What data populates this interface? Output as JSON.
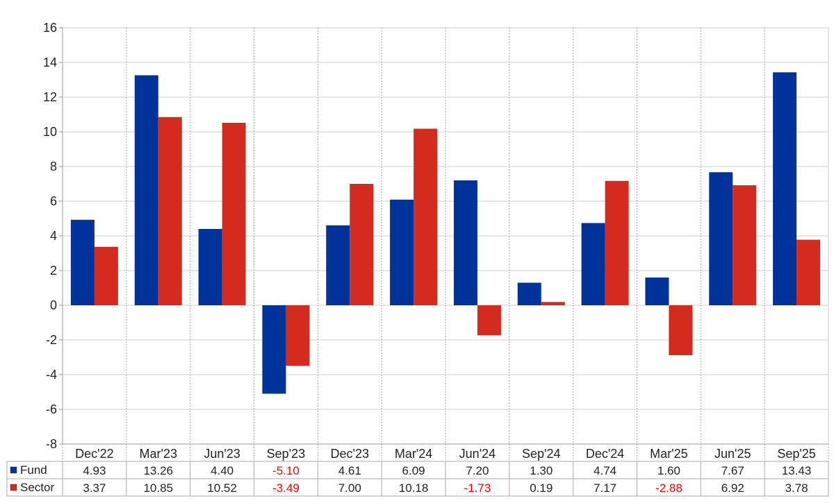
{
  "chart_data": {
    "type": "bar",
    "categories": [
      "Dec'22",
      "Mar'23",
      "Jun'23",
      "Sep'23",
      "Dec'23",
      "Mar'24",
      "Jun'24",
      "Sep'24",
      "Dec'24",
      "Mar'25",
      "Jun'25",
      "Sep'25"
    ],
    "series": [
      {
        "name": "Fund",
        "color": "#003399",
        "values": [
          4.93,
          13.26,
          4.4,
          -5.1,
          4.61,
          6.09,
          7.2,
          1.3,
          4.74,
          1.6,
          7.67,
          13.43
        ],
        "labels": [
          "4.93",
          "13.26",
          "4.40",
          "-5.10",
          "4.61",
          "6.09",
          "7.20",
          "1.30",
          "4.74",
          "1.60",
          "7.67",
          "13.43"
        ]
      },
      {
        "name": "Sector",
        "color": "#d52b1e",
        "values": [
          3.37,
          10.85,
          10.52,
          -3.49,
          7.0,
          10.18,
          -1.73,
          0.19,
          7.17,
          -2.88,
          6.92,
          3.78
        ],
        "labels": [
          "3.37",
          "10.85",
          "10.52",
          "-3.49",
          "7.00",
          "10.18",
          "-1.73",
          "0.19",
          "7.17",
          "-2.88",
          "6.92",
          "3.78"
        ]
      }
    ],
    "ylim": [
      -8,
      16
    ],
    "yticks": [
      "-8",
      "-6",
      "-4",
      "-2",
      "0",
      "2",
      "4",
      "6",
      "8",
      "10",
      "12",
      "14",
      "16"
    ],
    "negative_label_color": "#ff0000",
    "grid": true,
    "legend": "table-below",
    "title": "",
    "xlabel": "",
    "ylabel": ""
  }
}
